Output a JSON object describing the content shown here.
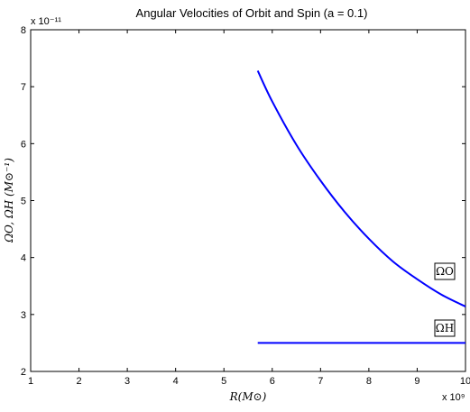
{
  "chart_data": {
    "type": "line",
    "title": "Angular Velocities of Orbit and Spin (a = 0.1)",
    "xlabel": "R(M⊙)",
    "ylabel": "ΩO, ΩH (M⊙⁻¹)",
    "x_exponent": "x 10⁹",
    "y_exponent": "x 10⁻¹¹",
    "xlim": [
      1,
      10
    ],
    "ylim": [
      2,
      8
    ],
    "xticks": [
      1,
      2,
      3,
      4,
      5,
      6,
      7,
      8,
      9,
      10
    ],
    "yticks": [
      2,
      3,
      4,
      5,
      6,
      7,
      8
    ],
    "grid": false,
    "line_color": "#0000ff",
    "series": [
      {
        "annotation": "ΩO",
        "x": [
          5.7,
          6.0,
          6.5,
          7.0,
          7.5,
          8.0,
          8.5,
          9.0,
          9.5,
          10.0
        ],
        "y": [
          7.28,
          6.74,
          5.98,
          5.35,
          4.8,
          4.33,
          3.93,
          3.62,
          3.35,
          3.14
        ]
      },
      {
        "annotation": "ΩH",
        "x": [
          5.7,
          10.0
        ],
        "y": [
          2.5,
          2.5
        ]
      }
    ]
  }
}
